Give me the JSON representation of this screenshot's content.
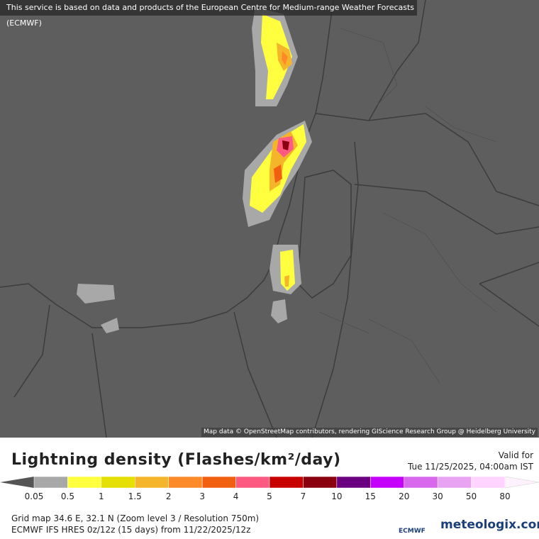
{
  "banner": "This service is based on data and products of the European Centre for Medium-range Weather Forecasts (ECMWF)",
  "attribution": "Map data © OpenStreetMap contributors, rendering GIScience Research Group @ Heidelberg University",
  "legend": {
    "title": "Lightning density (Flashes/km²/day)",
    "ticks": [
      0.05,
      0.5,
      1,
      1.5,
      2,
      3,
      4,
      5,
      7,
      10,
      15,
      20,
      30,
      50,
      80
    ],
    "colors": [
      "#a8a8a8",
      "#ffff40",
      "#e6e000",
      "#f5b52a",
      "#ff8a2a",
      "#f06010",
      "#ff5a82",
      "#c80000",
      "#8a0010",
      "#6a0080",
      "#c400ff",
      "#d868ec",
      "#e8a4f2",
      "#ffd4ff"
    ],
    "under_color": "#555555",
    "over_color": "#fff2ff"
  },
  "valid": {
    "label": "Valid for",
    "time": "Tue 11/25/2025, 04:00am IST"
  },
  "footer": {
    "line1": "Grid map 34.6 E, 32.1 N (Zoom level 3 / Resolution 750m)",
    "line2": "ECMWF IFS HRES 0z/12z (15 days) from 11/22/2025/12z"
  },
  "logos": {
    "ecmwf": "ECMWF",
    "meteologix": "meteologix.com"
  }
}
